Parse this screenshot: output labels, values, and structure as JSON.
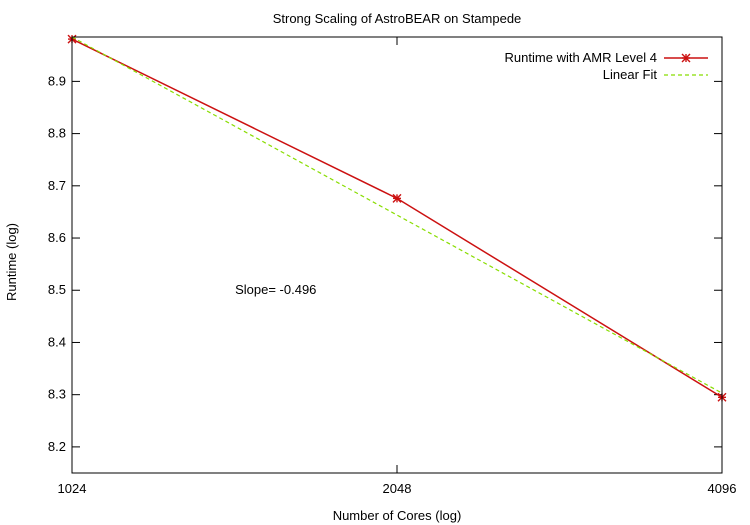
{
  "chart_data": {
    "type": "line",
    "title": "Strong Scaling of AstroBEAR on Stampede",
    "xlabel": "Number of Cores (log)",
    "ylabel": "Runtime (log)",
    "x_scale": "log2",
    "x_ticks": [
      1024,
      2048,
      4096
    ],
    "x_tick_labels": [
      "1024",
      "2048",
      "4096"
    ],
    "xlim": [
      1024,
      4096
    ],
    "y_ticks": [
      8.2,
      8.3,
      8.4,
      8.5,
      8.6,
      8.7,
      8.8,
      8.9
    ],
    "y_tick_labels": [
      "8.2",
      "8.3",
      "8.4",
      "8.5",
      "8.6",
      "8.7",
      "8.8",
      "8.9"
    ],
    "ylim": [
      8.15,
      8.985
    ],
    "grid": false,
    "legend_position": "top-right",
    "series": [
      {
        "name": "Runtime with AMR Level 4",
        "style": "linespoints",
        "color": "#cc1111",
        "x": [
          1024,
          2048,
          4096
        ],
        "y": [
          8.981,
          8.676,
          8.295
        ]
      },
      {
        "name": "Linear Fit",
        "style": "dashed",
        "color": "#88dd00",
        "x": [
          1024,
          4096
        ],
        "y": [
          8.985,
          8.303
        ]
      }
    ],
    "annotations": [
      {
        "text": "Slope= -0.496",
        "x": 1450,
        "y": 8.5
      }
    ]
  }
}
